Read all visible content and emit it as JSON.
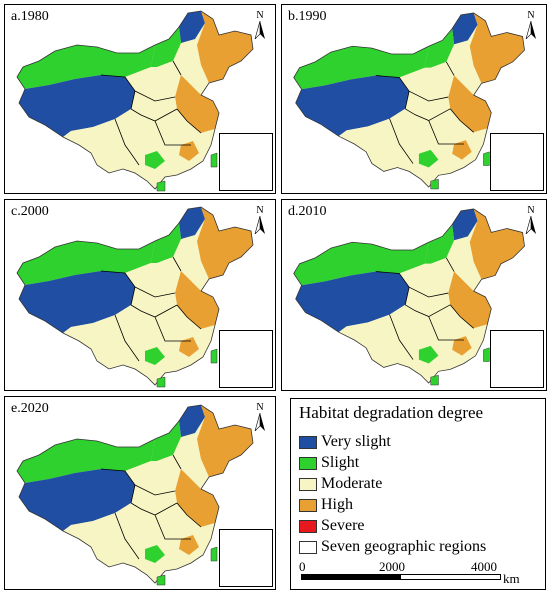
{
  "panels": [
    {
      "label": "a.1980"
    },
    {
      "label": "b.1990"
    },
    {
      "label": "c.2000"
    },
    {
      "label": "d.2010"
    },
    {
      "label": "e.2020"
    }
  ],
  "north_arrow": {
    "letter": "N",
    "icon": "north-arrow-icon"
  },
  "legend": {
    "title": "Habitat degradation degree",
    "items": [
      {
        "label": "Very slight",
        "color": "#1f4ea3"
      },
      {
        "label": "Slight",
        "color": "#2ed12e"
      },
      {
        "label": "Moderate",
        "color": "#f7f5c4"
      },
      {
        "label": "High",
        "color": "#e9a032"
      },
      {
        "label": "Severe",
        "color": "#e8191e"
      },
      {
        "label": "Seven geographic regions",
        "color": "#ffffff"
      }
    ],
    "scale": {
      "ticks": [
        "0",
        "2000",
        "4000"
      ],
      "unit": "km"
    }
  }
}
